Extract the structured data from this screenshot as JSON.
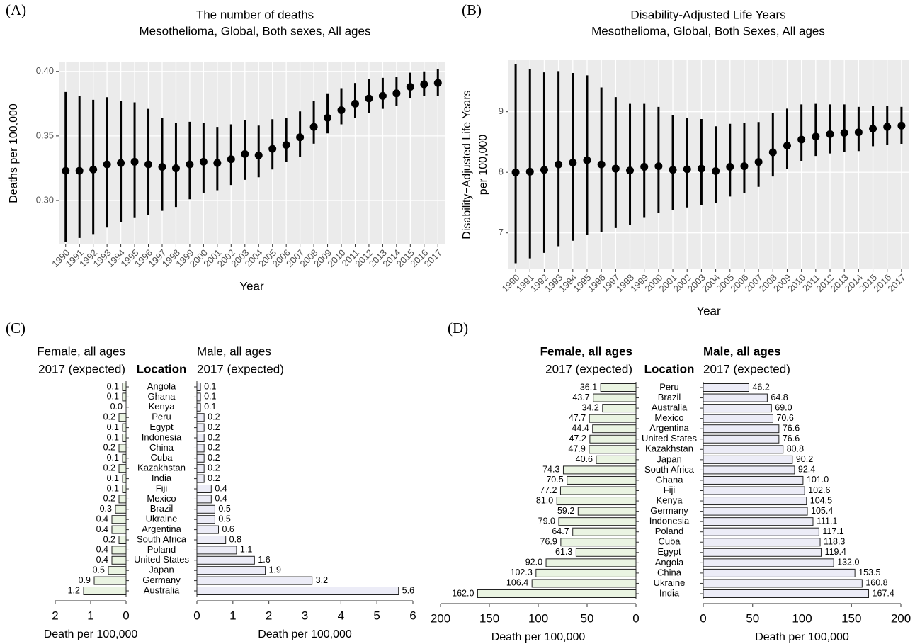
{
  "chart_data": [
    {
      "type": "pointrange",
      "panel": "(A)",
      "title": "The number of deaths",
      "subtitle": "Mesothelioma, Global, Both sexes, All ages",
      "xlabel": "Year",
      "ylabel": [
        "Deaths per 100,000"
      ],
      "categories": [
        "1990",
        "1991",
        "1992",
        "1993",
        "1994",
        "1995",
        "1996",
        "1997",
        "1998",
        "1999",
        "2000",
        "2001",
        "2002",
        "2003",
        "2004",
        "2005",
        "2006",
        "2007",
        "2008",
        "2009",
        "2010",
        "2011",
        "2012",
        "2013",
        "2014",
        "2015",
        "2016",
        "2017"
      ],
      "values": [
        0.323,
        0.323,
        0.324,
        0.328,
        0.329,
        0.33,
        0.328,
        0.326,
        0.325,
        0.328,
        0.33,
        0.329,
        0.332,
        0.336,
        0.335,
        0.34,
        0.343,
        0.349,
        0.357,
        0.364,
        0.37,
        0.375,
        0.379,
        0.381,
        0.383,
        0.388,
        0.39,
        0.391
      ],
      "lower": [
        0.268,
        0.271,
        0.274,
        0.279,
        0.283,
        0.287,
        0.289,
        0.292,
        0.295,
        0.301,
        0.306,
        0.308,
        0.312,
        0.316,
        0.318,
        0.324,
        0.33,
        0.334,
        0.344,
        0.352,
        0.359,
        0.364,
        0.368,
        0.371,
        0.373,
        0.379,
        0.381,
        0.381
      ],
      "upper": [
        0.384,
        0.381,
        0.378,
        0.38,
        0.377,
        0.376,
        0.371,
        0.364,
        0.36,
        0.361,
        0.36,
        0.357,
        0.359,
        0.362,
        0.358,
        0.363,
        0.364,
        0.369,
        0.377,
        0.383,
        0.387,
        0.391,
        0.394,
        0.395,
        0.396,
        0.399,
        0.4,
        0.402
      ],
      "color": "#000000",
      "ylim": [
        0.266,
        0.407
      ],
      "yticks": [
        {
          "value": 0.3,
          "label": "0.30"
        },
        0.35,
        {
          "value": 0.4,
          "label": "0.40"
        }
      ],
      "grid": true
    },
    {
      "type": "pointrange",
      "panel": "(B)",
      "title": "Disability-Adjusted Life Years",
      "subtitle": "Mesothelioma, Global, Both Sexes, All ages",
      "xlabel": "Year",
      "ylabel": [
        "Disability−Adjusted Life Years",
        "per 100,000"
      ],
      "categories": [
        "1990",
        "1991",
        "1992",
        "1993",
        "1994",
        "1995",
        "1996",
        "1997",
        "1998",
        "1999",
        "2000",
        "2001",
        "2002",
        "2003",
        "2004",
        "2005",
        "2006",
        "2007",
        "2008",
        "2009",
        "2010",
        "2011",
        "2012",
        "2013",
        "2014",
        "2015",
        "2016",
        "2017"
      ],
      "values": [
        8.0,
        8.01,
        8.04,
        8.13,
        8.16,
        8.2,
        8.13,
        8.06,
        8.03,
        8.09,
        8.1,
        8.04,
        8.05,
        8.06,
        8.02,
        8.09,
        8.1,
        8.17,
        8.33,
        8.44,
        8.54,
        8.59,
        8.63,
        8.65,
        8.66,
        8.72,
        8.75,
        8.77
      ],
      "lower": [
        6.5,
        6.58,
        6.67,
        6.78,
        6.87,
        6.97,
        7.01,
        7.08,
        7.13,
        7.26,
        7.33,
        7.37,
        7.42,
        7.46,
        7.5,
        7.6,
        7.66,
        7.76,
        7.93,
        8.06,
        8.19,
        8.27,
        8.31,
        8.33,
        8.35,
        8.43,
        8.45,
        8.47
      ],
      "upper": [
        9.78,
        9.7,
        9.65,
        9.67,
        9.64,
        9.6,
        9.4,
        9.24,
        9.13,
        9.13,
        9.08,
        8.95,
        8.9,
        8.88,
        8.76,
        8.8,
        8.81,
        8.83,
        8.98,
        9.05,
        9.12,
        9.13,
        9.12,
        9.12,
        9.08,
        9.1,
        9.1,
        9.08
      ],
      "color": "#000000",
      "ylim": [
        6.4,
        9.85
      ],
      "yticks": [
        7,
        8,
        9
      ],
      "grid": true
    },
    {
      "type": "back-to-back-bar",
      "panel": "(C)",
      "category_title": "Location",
      "categories": [
        "Angola",
        "Ghana",
        "Kenya",
        "Peru",
        "Egypt",
        "Indonesia",
        "China",
        "Cuba",
        "Kazakhstan",
        "India",
        "Fiji",
        "Mexico",
        "Brazil",
        "Ukraine",
        "Argentina",
        "South Africa",
        "Poland",
        "United States",
        "Japan",
        "Germany",
        "Australia"
      ],
      "series": [
        {
          "name": "Female, all ages",
          "subtitle": "2017 (expected)",
          "color": "#eaf4e2",
          "xlabel": "Death per 100,000",
          "values": [
            0.1,
            0.1,
            0.0,
            0.2,
            0.1,
            0.1,
            0.2,
            0.1,
            0.2,
            0.1,
            0.1,
            0.2,
            0.3,
            0.4,
            0.4,
            0.2,
            0.4,
            0.4,
            0.5,
            0.9,
            1.2
          ],
          "value_labels": [
            "0.1",
            "0.1",
            "0.0",
            "0.2",
            "0.1",
            "0.1",
            "0.2",
            "0.1",
            "0.2",
            "0.1",
            "0.1",
            "0.2",
            "0.3",
            "0.4",
            "0.4",
            "0.2",
            "0.4",
            "0.4",
            "0.5",
            "0.9",
            "1.2"
          ],
          "xlim": [
            0,
            2
          ],
          "xticks": [
            2,
            1,
            0
          ]
        },
        {
          "name": "Male, all ages",
          "subtitle": "2017 (expected)",
          "color": "#ececf7",
          "xlabel": "Death per 100,000",
          "values": [
            0.1,
            0.1,
            0.1,
            0.2,
            0.2,
            0.2,
            0.2,
            0.2,
            0.2,
            0.2,
            0.4,
            0.4,
            0.5,
            0.5,
            0.6,
            0.8,
            1.1,
            1.6,
            1.9,
            3.2,
            5.6
          ],
          "value_labels": [
            "0.1",
            "0.1",
            "0.1",
            "0.2",
            "0.2",
            "0.2",
            "0.2",
            "0.2",
            "0.2",
            "0.2",
            "0.4",
            "0.4",
            "0.5",
            "0.5",
            "0.6",
            "0.8",
            "1.1",
            "1.6",
            "1.9",
            "3.2",
            "5.6"
          ],
          "xlim": [
            0,
            6
          ],
          "xticks": [
            0,
            1,
            2,
            3,
            4,
            5,
            6
          ]
        }
      ]
    },
    {
      "type": "back-to-back-bar",
      "panel": "(D)",
      "category_title": "Location",
      "categories": [
        "Peru",
        "Brazil",
        "Australia",
        "Mexico",
        "Argentina",
        "United States",
        "Kazakhstan",
        "Japan",
        "South Africa",
        "Ghana",
        "Fiji",
        "Kenya",
        "Germany",
        "Indonesia",
        "Poland",
        "Cuba",
        "Egypt",
        "Angola",
        "China",
        "Ukraine",
        "India"
      ],
      "series": [
        {
          "name": "Female, all ages",
          "subtitle": "2017 (expected)",
          "color": "#eaf4e2",
          "xlabel": "Death per 100,000",
          "values": [
            36.1,
            43.7,
            34.2,
            47.7,
            44.4,
            47.2,
            47.9,
            40.6,
            74.3,
            70.5,
            77.2,
            81.0,
            59.2,
            79.0,
            64.7,
            76.9,
            61.3,
            92.0,
            102.3,
            106.4,
            162.0
          ],
          "value_labels": [
            "36.1",
            "43.7",
            "34.2",
            "47.7",
            "44.4",
            "47.2",
            "47.9",
            "40.6",
            "74.3",
            "70.5",
            "77.2",
            "81.0",
            "59.2",
            "79.0",
            "64.7",
            "76.9",
            "61.3",
            "92.0",
            "102.3",
            "106.4",
            "162.0"
          ],
          "xlim": [
            0,
            200
          ],
          "xticks": [
            200,
            150,
            100,
            50,
            0
          ]
        },
        {
          "name": "Male, all ages",
          "subtitle": "2017 (expected)",
          "color": "#ececf7",
          "xlabel": "Death per 100,000",
          "values": [
            46.2,
            64.8,
            69.0,
            70.6,
            76.6,
            76.6,
            80.8,
            90.2,
            92.4,
            101.0,
            102.6,
            104.5,
            105.4,
            111.1,
            117.1,
            118.3,
            119.4,
            132.0,
            153.5,
            160.8,
            167.4
          ],
          "value_labels": [
            "46.2",
            "64.8",
            "69.0",
            "70.6",
            "76.6",
            "76.6",
            "80.8",
            "90.2",
            "92.4",
            "101.0",
            "102.6",
            "104.5",
            "105.4",
            "111.1",
            "117.1",
            "118.3",
            "119.4",
            "132.0",
            "153.5",
            "160.8",
            "167.4"
          ],
          "xlim": [
            0,
            200
          ],
          "xticks": [
            0,
            50,
            100,
            150,
            200
          ]
        }
      ]
    }
  ]
}
